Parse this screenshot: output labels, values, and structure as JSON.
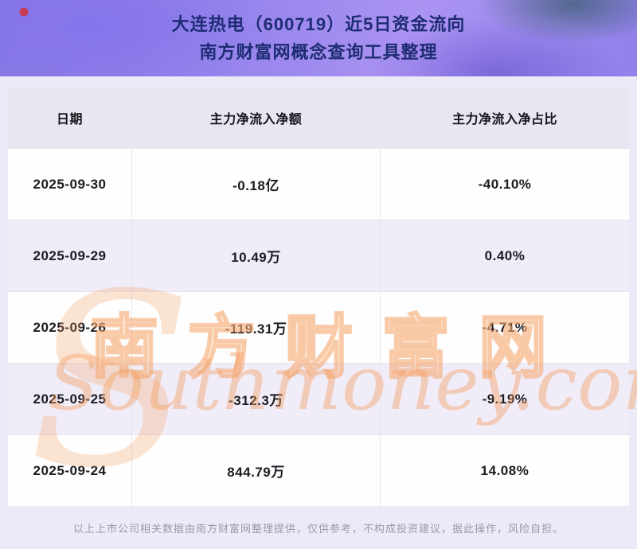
{
  "header": {
    "title_line1": "大连热电（600719）近5日资金流向",
    "title_line2": "南方财富网概念查询工具整理"
  },
  "table": {
    "columns": [
      "日期",
      "主力净流入净额",
      "主力净流入净占比"
    ],
    "rows": [
      {
        "date": "2025-09-30",
        "amount": "-0.18亿",
        "ratio": "-40.10%"
      },
      {
        "date": "2025-09-29",
        "amount": "10.49万",
        "ratio": "0.40%"
      },
      {
        "date": "2025-09-26",
        "amount": "-119.31万",
        "ratio": "-4.71%"
      },
      {
        "date": "2025-09-25",
        "amount": "-312.3万",
        "ratio": "-9.19%"
      },
      {
        "date": "2025-09-24",
        "amount": "844.79万",
        "ratio": "14.08%"
      }
    ]
  },
  "watermark": {
    "cn": "南方财富网",
    "en": "Southmoney.com",
    "monogram": "S"
  },
  "footer": {
    "disclaimer": "以上上市公司相关数据由南方财富网整理提供，仅供参考，不构成投资建议，据此操作，风险自担。"
  },
  "colors": {
    "title_text": "#1e2d73",
    "banner_purple": "#9c88ee",
    "header_row_bg": "#e9e6f2",
    "alt_row_bg": "#f0edf9",
    "watermark_orange": "#f39e60",
    "footer_text": "#9b98ab"
  },
  "chart_data": {
    "type": "table",
    "title": "大连热电（600719）近5日资金流向",
    "subtitle": "南方财富网概念查询工具整理",
    "columns": [
      "日期",
      "主力净流入净额",
      "主力净流入净占比"
    ],
    "rows": [
      [
        "2025-09-30",
        "-0.18亿",
        "-40.10%"
      ],
      [
        "2025-09-29",
        "10.49万",
        "0.40%"
      ],
      [
        "2025-09-26",
        "-119.31万",
        "-4.71%"
      ],
      [
        "2025-09-25",
        "-312.3万",
        "-9.19%"
      ],
      [
        "2025-09-24",
        "844.79万",
        "14.08%"
      ]
    ],
    "numeric": {
      "dates": [
        "2025-09-30",
        "2025-09-29",
        "2025-09-26",
        "2025-09-25",
        "2025-09-24"
      ],
      "net_inflow_wan": [
        -1800,
        10.49,
        -119.31,
        -312.3,
        844.79
      ],
      "net_inflow_ratio_pct": [
        -40.1,
        0.4,
        -4.71,
        -9.19,
        14.08
      ]
    }
  }
}
